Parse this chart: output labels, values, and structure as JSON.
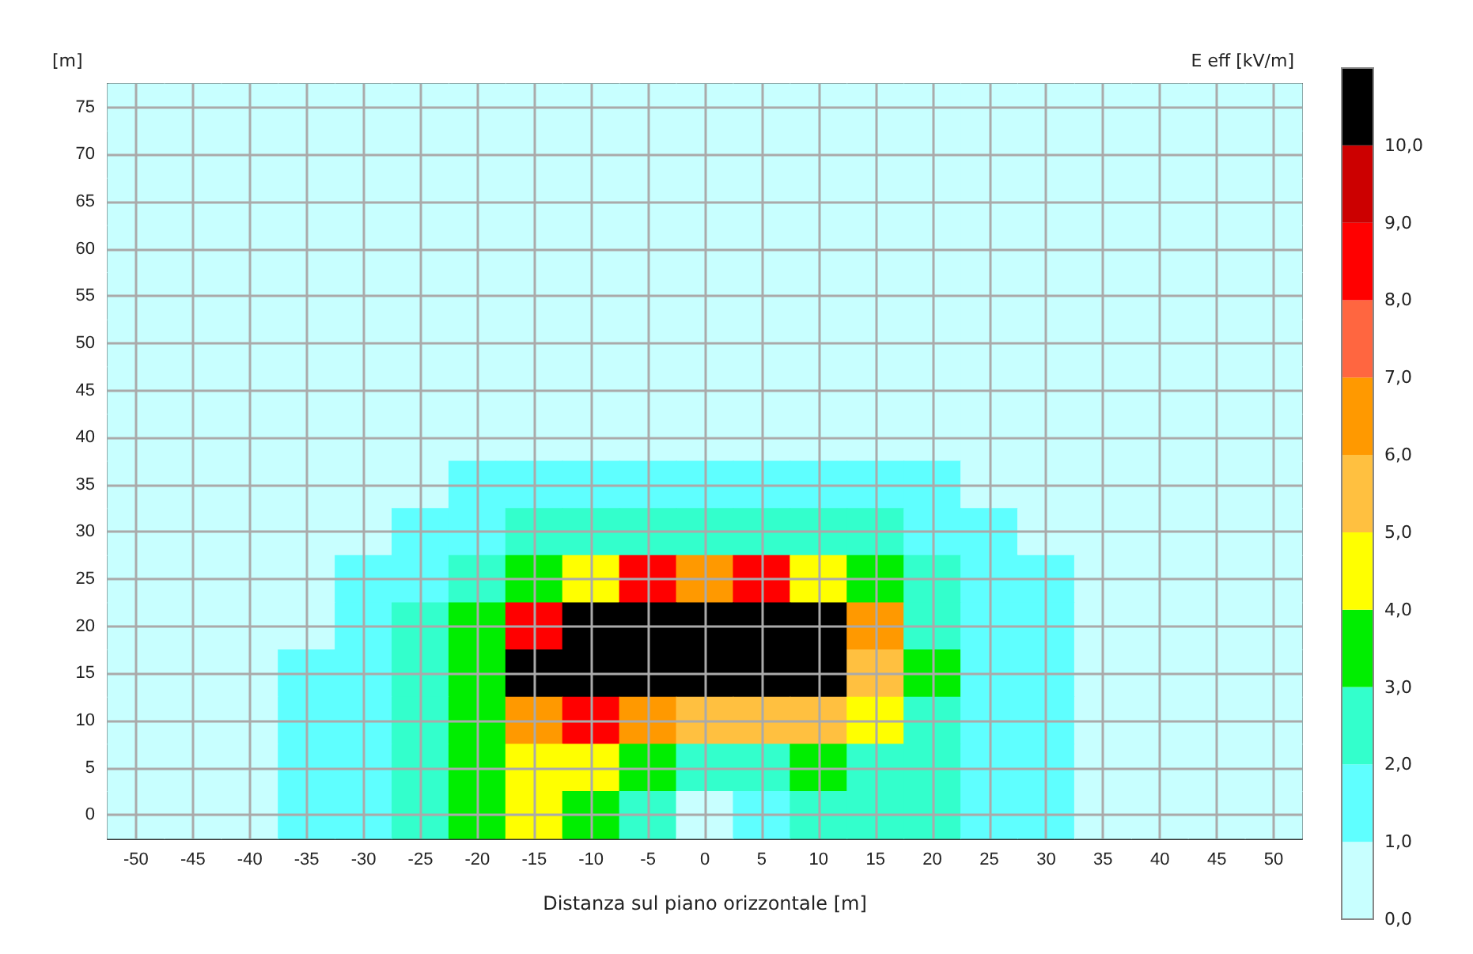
{
  "chart_data": {
    "type": "heatmap",
    "xlabel": "Distanza sul piano orizzontale [m]",
    "ylabel": "[m]",
    "clabel": "E eff [kV/m]",
    "categories": [
      "-50",
      "-45",
      "-40",
      "-35",
      "-30",
      "-25",
      "-20",
      "-15",
      "-10",
      "-5",
      "0",
      "5",
      "10",
      "15",
      "20",
      "25",
      "30",
      "35",
      "40",
      "45",
      "50"
    ],
    "y_categories": [
      "75",
      "70",
      "65",
      "60",
      "55",
      "50",
      "45",
      "40",
      "35",
      "30",
      "25",
      "20",
      "15",
      "10",
      "5",
      "0"
    ],
    "cells": [
      [
        0.5,
        0.5,
        0.5,
        0.5,
        0.5,
        0.5,
        0.5,
        0.5,
        0.5,
        0.5,
        0.5,
        0.5,
        0.5,
        0.5,
        0.5,
        0.5,
        0.5,
        0.5,
        0.5,
        0.5,
        0.5
      ],
      [
        0.5,
        0.5,
        0.5,
        0.5,
        0.5,
        0.5,
        0.5,
        0.5,
        0.5,
        0.5,
        0.5,
        0.5,
        0.5,
        0.5,
        0.5,
        0.5,
        0.5,
        0.5,
        0.5,
        0.5,
        0.5
      ],
      [
        0.5,
        0.5,
        0.5,
        0.5,
        0.5,
        0.5,
        0.5,
        0.5,
        0.5,
        0.5,
        0.5,
        0.5,
        0.5,
        0.5,
        0.5,
        0.5,
        0.5,
        0.5,
        0.5,
        0.5,
        0.5
      ],
      [
        0.5,
        0.5,
        0.5,
        0.5,
        0.5,
        0.5,
        0.5,
        0.5,
        0.5,
        0.5,
        0.5,
        0.5,
        0.5,
        0.5,
        0.5,
        0.5,
        0.5,
        0.5,
        0.5,
        0.5,
        0.5
      ],
      [
        0.5,
        0.5,
        0.5,
        0.5,
        0.5,
        0.5,
        0.5,
        0.5,
        0.5,
        0.5,
        0.5,
        0.5,
        0.5,
        0.5,
        0.5,
        0.5,
        0.5,
        0.5,
        0.5,
        0.5,
        0.5
      ],
      [
        0.5,
        0.5,
        0.5,
        0.5,
        0.5,
        0.5,
        0.5,
        0.5,
        0.5,
        0.5,
        0.5,
        0.5,
        0.5,
        0.5,
        0.5,
        0.5,
        0.5,
        0.5,
        0.5,
        0.5,
        0.5
      ],
      [
        0.5,
        0.5,
        0.5,
        0.5,
        0.5,
        0.5,
        0.5,
        0.5,
        0.5,
        0.5,
        0.5,
        0.5,
        0.5,
        0.5,
        0.5,
        0.5,
        0.5,
        0.5,
        0.5,
        0.5,
        0.5
      ],
      [
        0.5,
        0.5,
        0.5,
        0.5,
        0.5,
        0.5,
        0.5,
        0.5,
        0.5,
        0.5,
        0.5,
        0.5,
        0.5,
        0.5,
        0.5,
        0.5,
        0.5,
        0.5,
        0.5,
        0.5,
        0.5
      ],
      [
        0.5,
        0.5,
        0.5,
        0.5,
        0.5,
        0.5,
        1.5,
        1.5,
        1.5,
        1.5,
        1.5,
        1.5,
        1.5,
        1.5,
        1.5,
        0.5,
        0.5,
        0.5,
        0.5,
        0.5,
        0.5
      ],
      [
        0.5,
        0.5,
        0.5,
        0.5,
        0.5,
        1.5,
        1.5,
        2.5,
        2.5,
        2.5,
        2.5,
        2.5,
        2.5,
        2.5,
        1.5,
        1.5,
        0.5,
        0.5,
        0.5,
        0.5,
        0.5
      ],
      [
        0.5,
        0.5,
        0.5,
        0.5,
        1.5,
        1.5,
        2.5,
        3.5,
        4.5,
        8.5,
        6.5,
        8.5,
        4.5,
        3.5,
        2.5,
        1.5,
        1.5,
        0.5,
        0.5,
        0.5,
        0.5
      ],
      [
        0.5,
        0.5,
        0.5,
        0.5,
        1.5,
        2.5,
        3.5,
        8.5,
        10.5,
        10.5,
        10.5,
        10.5,
        10.5,
        6.5,
        2.5,
        1.5,
        1.5,
        0.5,
        0.5,
        0.5,
        0.5
      ],
      [
        0.5,
        0.5,
        0.5,
        1.5,
        1.5,
        2.5,
        3.5,
        10.5,
        10.5,
        10.5,
        10.5,
        10.5,
        10.5,
        5.5,
        3.5,
        1.5,
        1.5,
        0.5,
        0.5,
        0.5,
        0.5
      ],
      [
        0.5,
        0.5,
        0.5,
        1.5,
        1.5,
        2.5,
        3.5,
        6.5,
        8.5,
        6.5,
        5.5,
        5.5,
        5.5,
        4.5,
        2.5,
        1.5,
        1.5,
        0.5,
        0.5,
        0.5,
        0.5
      ],
      [
        0.5,
        0.5,
        0.5,
        1.5,
        1.5,
        2.5,
        3.5,
        4.5,
        4.5,
        3.5,
        2.5,
        2.5,
        3.5,
        2.5,
        2.5,
        1.5,
        1.5,
        0.5,
        0.5,
        0.5,
        0.5
      ],
      [
        0.5,
        0.5,
        0.5,
        1.5,
        1.5,
        2.5,
        3.5,
        4.5,
        3.5,
        2.5,
        0.5,
        1.5,
        2.5,
        2.5,
        2.5,
        1.5,
        1.5,
        0.5,
        0.5,
        0.5,
        0.5
      ]
    ],
    "clim": [
      0,
      11
    ],
    "cticks": [
      {
        "value": 0,
        "label": "0,0"
      },
      {
        "value": 1,
        "label": "1,0"
      },
      {
        "value": 2,
        "label": "2,0"
      },
      {
        "value": 3,
        "label": "3,0"
      },
      {
        "value": 4,
        "label": "4,0"
      },
      {
        "value": 5,
        "label": "5,0"
      },
      {
        "value": 6,
        "label": "6,0"
      },
      {
        "value": 7,
        "label": "7,0"
      },
      {
        "value": 8,
        "label": "8,0"
      },
      {
        "value": 9,
        "label": "9,0"
      },
      {
        "value": 10,
        "label": "10,0"
      },
      {
        "value": 11,
        "label": null
      }
    ],
    "colors": [
      "#c8ffff",
      "#5fffff",
      "#33ffcc",
      "#00ee00",
      "#ffff00",
      "#ffc040",
      "#ff9900",
      "#ff6640",
      "#ff0000",
      "#cc0000",
      "#000000"
    ],
    "grid": true
  }
}
